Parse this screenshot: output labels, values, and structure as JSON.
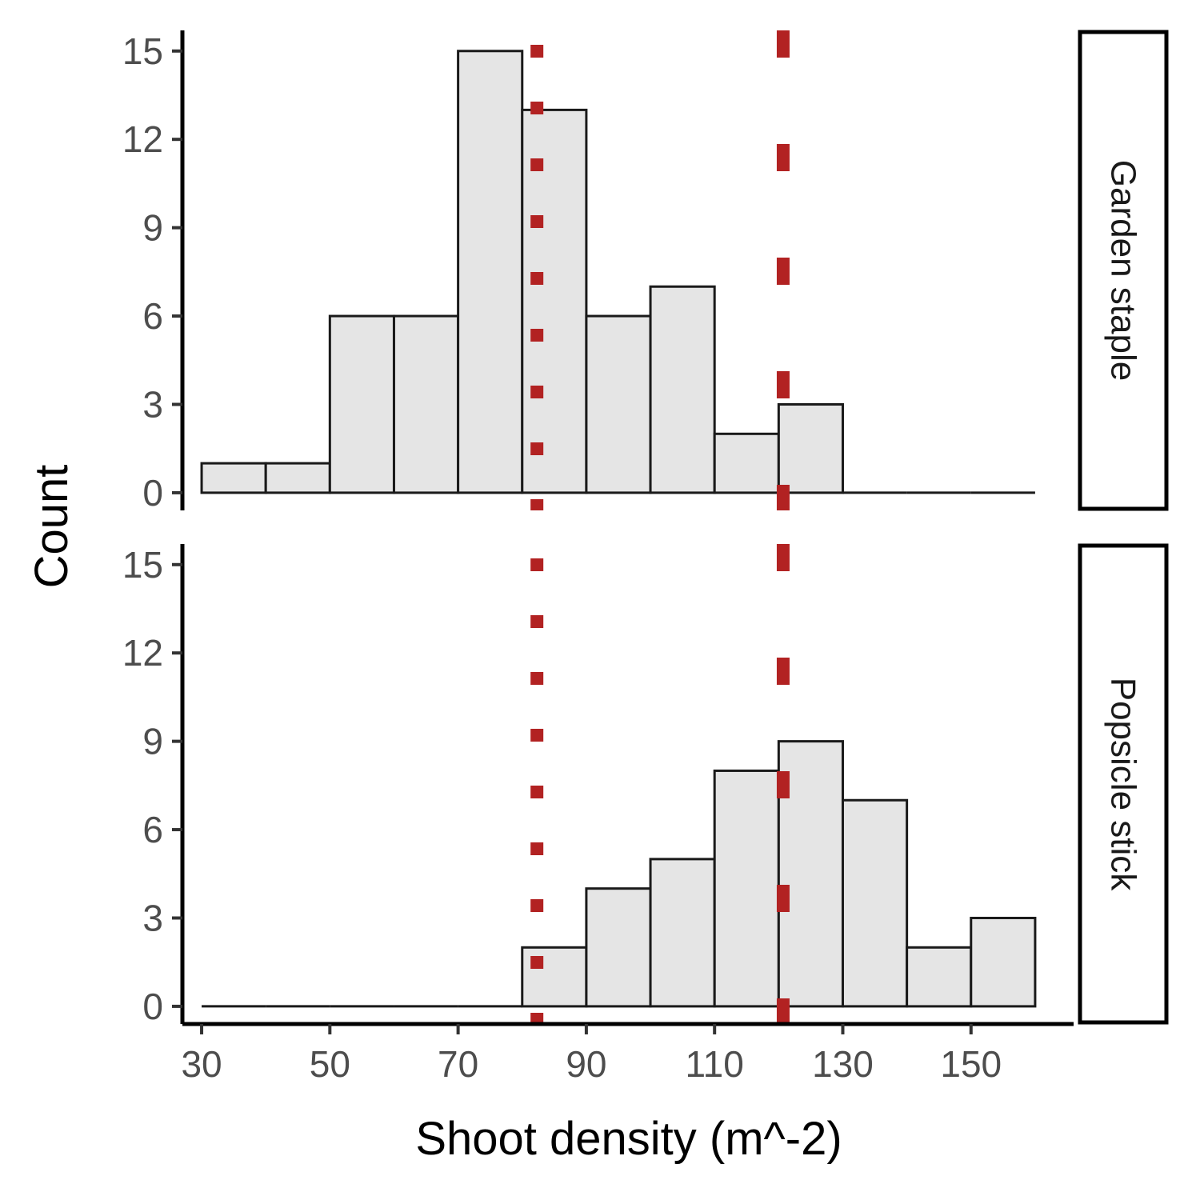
{
  "chart_data": {
    "type": "bar",
    "subtype": "faceted-histogram",
    "xlabel": "Shoot density (m^-2)",
    "ylabel": "Count",
    "xlim": [
      27,
      166
    ],
    "ylim": [
      -0.6,
      15.7
    ],
    "x_ticks": [
      30,
      50,
      70,
      90,
      110,
      130,
      150
    ],
    "y_ticks": [
      0,
      3,
      6,
      9,
      12,
      15
    ],
    "bin_edges": [
      30,
      40,
      50,
      60,
      70,
      80,
      90,
      100,
      110,
      120,
      130,
      140,
      150,
      160
    ],
    "series": [
      {
        "name": "Garden staple",
        "values": [
          1,
          1,
          6,
          6,
          15,
          13,
          6,
          7,
          2,
          3,
          0,
          0,
          0
        ]
      },
      {
        "name": "Popsicle stick",
        "values": [
          0,
          0,
          0,
          0,
          0,
          2,
          4,
          5,
          8,
          9,
          7,
          2,
          3
        ]
      }
    ],
    "reference_lines": [
      {
        "x": 82.3,
        "style": "dotted",
        "color": "#B22222"
      },
      {
        "x": 120.7,
        "style": "dashed",
        "color": "#B22222"
      }
    ],
    "colors": {
      "bar_fill": "#E5E5E5",
      "bar_stroke": "#1a1a1a",
      "reference": "#B22222"
    },
    "grid": false,
    "legend": "none"
  }
}
